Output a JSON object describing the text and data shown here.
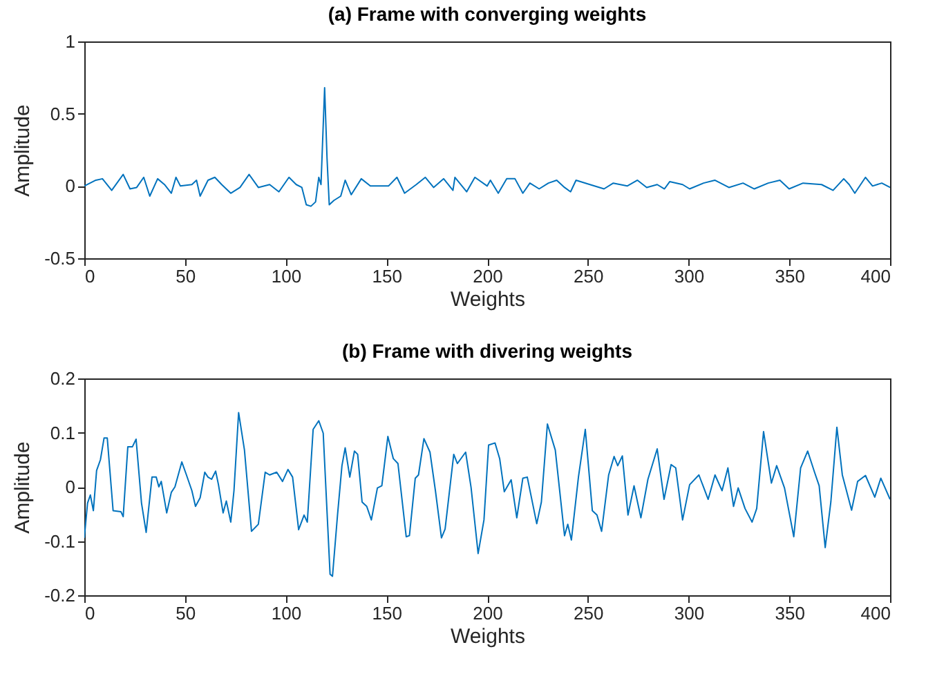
{
  "chart_data": [
    {
      "type": "line",
      "title": "(a) Frame with converging weights",
      "xlabel": "Weights",
      "ylabel": "Amplitude",
      "xlim": [
        0,
        400
      ],
      "ylim": [
        -0.5,
        1
      ],
      "xticks": [
        0,
        50,
        100,
        150,
        200,
        250,
        300,
        350,
        400
      ],
      "yticks": [
        -0.5,
        0,
        0.5,
        1
      ],
      "x": [
        0,
        5.7,
        9,
        13.6,
        19.3,
        22.7,
        26,
        29.5,
        32.5,
        36.4,
        39.8,
        43.2,
        45.5,
        47.7,
        53.4,
        55.7,
        57.5,
        61.4,
        64.8,
        68.2,
        72.7,
        77.3,
        81.8,
        86.4,
        92,
        96.6,
        101.6,
        105.2,
        108,
        110.2,
        112.5,
        114.8,
        116.4,
        117.5,
        119.3,
        120.5,
        121.6,
        123.9,
        127.3,
        129.5,
        132.5,
        137.5,
        142,
        151,
        155.2,
        159,
        164.8,
        169.3,
        173.4,
        178.4,
        183,
        184,
        189.8,
        193.9,
        200,
        201.6,
        205.5,
        209.7,
        213.8,
        217.7,
        221.2,
        225.8,
        230.4,
        234.5,
        238.4,
        241.4,
        244.1,
        251,
        258,
        262.6,
        269.5,
        274.6,
        279.2,
        284.4,
        288,
        290.6,
        297,
        300.5,
        307.4,
        313,
        320,
        327,
        332.6,
        339.5,
        345.3,
        349.9,
        356.8,
        366,
        371.7,
        377,
        379.7,
        382.5,
        387.8,
        391.3,
        395.9,
        400
      ],
      "series": [
        {
          "color": "#0072bd",
          "values": [
            0,
            0.04,
            0.05,
            -0.03,
            0.08,
            -0.02,
            -0.01,
            0.06,
            -0.07,
            0.05,
            0.01,
            -0.05,
            0.06,
            0,
            0.01,
            0.04,
            -0.07,
            0.04,
            0.06,
            0.01,
            -0.05,
            -0.01,
            0.08,
            -0.01,
            0.01,
            -0.04,
            0.06,
            0.01,
            -0.01,
            -0.13,
            -0.14,
            -0.11,
            0.06,
            0.01,
            0.68,
            0.19,
            -0.13,
            -0.1,
            -0.07,
            0.04,
            -0.06,
            0.05,
            0,
            0,
            0.06,
            -0.05,
            0.01,
            0.06,
            -0.01,
            0.05,
            -0.03,
            0.06,
            -0.04,
            0.06,
            0,
            0.04,
            -0.05,
            0.05,
            0.05,
            -0.05,
            0.02,
            -0.02,
            0.02,
            0.04,
            -0.01,
            -0.04,
            0.04,
            0.01,
            -0.02,
            0.02,
            0,
            0.04,
            -0.01,
            0.01,
            -0.02,
            0.03,
            0.01,
            -0.02,
            0.02,
            0.04,
            -0.01,
            0.02,
            -0.02,
            0.02,
            0.04,
            -0.02,
            0.02,
            0.01,
            -0.03,
            0.05,
            0.01,
            -0.05,
            0.06,
            0,
            0.02,
            -0.01
          ]
        }
      ]
    },
    {
      "type": "line",
      "title": "(b) Frame with divering weights",
      "xlabel": "Weights",
      "ylabel": "Amplitude",
      "xlim": [
        0,
        400
      ],
      "ylim": [
        -0.2,
        0.2
      ],
      "xticks": [
        0,
        50,
        100,
        150,
        200,
        250,
        300,
        350,
        400
      ],
      "yticks": [
        -0.2,
        -0.1,
        0,
        0.1,
        0.2
      ],
      "x": [
        0,
        1.6,
        3,
        4.5,
        6.1,
        8,
        9.8,
        11.4,
        14.3,
        18.2,
        19.3,
        21.6,
        23.9,
        25.7,
        28.4,
        30.7,
        33.6,
        35.7,
        37,
        38.2,
        40.9,
        43.2,
        45,
        48.4,
        50.7,
        53.4,
        55.2,
        57.5,
        59.8,
        61.4,
        63.2,
        65.2,
        66.6,
        68.9,
        70.5,
        72.7,
        74.3,
        76.6,
        79.5,
        83,
        86.4,
        89.8,
        92,
        95.5,
        98.4,
        101.1,
        103.4,
        106.4,
        109.1,
        110.7,
        113.6,
        116.4,
        118.6,
        122,
        123.2,
        125.7,
        127.9,
        129.5,
        131.8,
        134.1,
        135.7,
        137.9,
        140.2,
        142.5,
        145.5,
        147.7,
        150.7,
        153.4,
        155.7,
        159.8,
        161.4,
        164.3,
        165.9,
        168.6,
        171.6,
        174.3,
        177.3,
        179.1,
        183.4,
        185.2,
        189.3,
        192,
        195.5,
        198.4,
        200.7,
        203.9,
        206.2,
        208.5,
        211.9,
        214.7,
        217.7,
        219.9,
        224.6,
        226.9,
        229.9,
        233.8,
        238.4,
        240,
        241.8,
        245.3,
        248.7,
        252.2,
        254.5,
        256.8,
        260.3,
        263,
        264.8,
        267.1,
        269.9,
        272.9,
        276.3,
        279.8,
        284.4,
        287.8,
        291.3,
        293.6,
        297,
        300.5,
        305.1,
        309.7,
        313.1,
        316.6,
        319.5,
        322.3,
        324.6,
        328,
        331.5,
        333.8,
        337.2,
        341.1,
        343.7,
        347.6,
        352.2,
        355.6,
        359.1,
        362.5,
        364.8,
        367.8,
        370.6,
        373.6,
        376.3,
        380.9,
        383.9,
        387.8,
        392.4,
        395.4,
        400
      ],
      "series": [
        {
          "color": "#0072bd",
          "values": [
            -0.094,
            -0.03,
            -0.015,
            -0.044,
            0.03,
            0.05,
            0.09,
            0.09,
            -0.044,
            -0.046,
            -0.055,
            0.074,
            0.074,
            0.088,
            -0.03,
            -0.084,
            0.018,
            0.018,
            0,
            0.01,
            -0.048,
            -0.01,
            0,
            0.046,
            0.022,
            -0.007,
            -0.036,
            -0.02,
            0.027,
            0.018,
            0.014,
            0.029,
            0.004,
            -0.048,
            -0.026,
            -0.065,
            -0.007,
            0.137,
            0.068,
            -0.082,
            -0.069,
            0.027,
            0.022,
            0.027,
            0.01,
            0.032,
            0.018,
            -0.079,
            -0.052,
            -0.065,
            0.106,
            0.122,
            0.099,
            -0.161,
            -0.165,
            -0.052,
            0.039,
            0.072,
            0.018,
            0.066,
            0.06,
            -0.028,
            -0.036,
            -0.061,
            -0.002,
            0.002,
            0.093,
            0.052,
            0.043,
            -0.092,
            -0.09,
            0.016,
            0.022,
            0.089,
            0.064,
            -0.007,
            -0.094,
            -0.078,
            0.06,
            0.043,
            0.064,
            -0.001,
            -0.123,
            -0.061,
            0.077,
            0.081,
            0.052,
            -0.009,
            0.013,
            -0.057,
            0.016,
            0.018,
            -0.068,
            -0.028,
            0.116,
            0.068,
            -0.09,
            -0.069,
            -0.098,
            0.018,
            0.106,
            -0.044,
            -0.052,
            -0.082,
            0.022,
            0.056,
            0.039,
            0.057,
            -0.052,
            0.002,
            -0.057,
            0.014,
            0.07,
            -0.023,
            0.041,
            0.035,
            -0.061,
            0.004,
            0.022,
            -0.023,
            0.022,
            -0.007,
            0.035,
            -0.036,
            -0.002,
            -0.04,
            -0.065,
            -0.04,
            0.102,
            0.007,
            0.039,
            -0.002,
            -0.092,
            0.035,
            0.066,
            0.027,
            0.002,
            -0.112,
            -0.028,
            0.11,
            0.022,
            -0.043,
            0.01,
            0.021,
            -0.019,
            0.016,
            -0.023
          ]
        }
      ]
    }
  ]
}
